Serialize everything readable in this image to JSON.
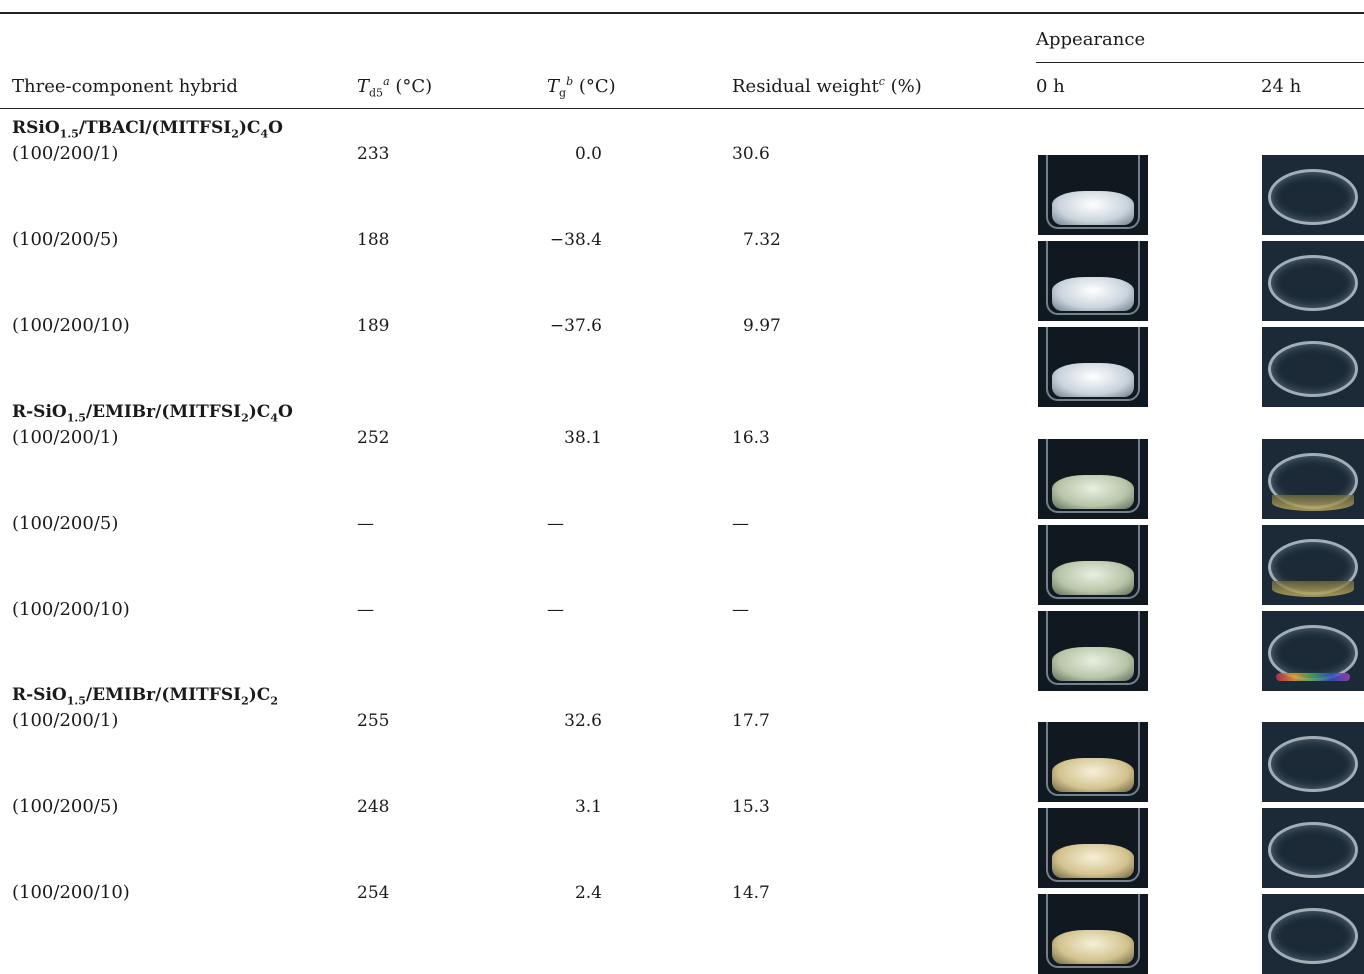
{
  "headers": {
    "hybrid": "Three-component hybrid",
    "td5_sym": "T",
    "td5_sub": "d5",
    "td5_sup": "a",
    "td5_unit": " (°C)",
    "tg_sym": "T",
    "tg_sub": "g",
    "tg_sup": "b",
    "tg_unit": " (°C)",
    "residual": "Residual weight",
    "residual_sup": "c",
    "residual_unit": " (%)",
    "appearance": "Appearance",
    "t0": "0 h",
    "t24": "24 h"
  },
  "groups": [
    {
      "name": "RSiO1.5/TBACl/(MITFSI2)C4O",
      "name_parts": {
        "a": "RSiO",
        "b": "1.5",
        "c": "/TBACl/(MITFSI",
        "d": "2",
        "e": ")C",
        "f": "4",
        "g": "O"
      },
      "rows": [
        {
          "ratio": "(100/200/1)",
          "td5": "233",
          "tg": "0.0",
          "residual": "30.6",
          "fill0": "white",
          "vial24": "dish"
        },
        {
          "ratio": "(100/200/5)",
          "td5": "188",
          "tg": "−38.4",
          "residual": "7.32",
          "fill0": "white",
          "vial24": "dish"
        },
        {
          "ratio": "(100/200/10)",
          "td5": "189",
          "tg": "−37.6",
          "residual": "9.97",
          "fill0": "white",
          "vial24": "dish"
        }
      ]
    },
    {
      "name": "R-SiO1.5/EMIBr/(MITFSI2)C4O",
      "name_parts": {
        "a": "R-SiO",
        "b": "1.5",
        "c": "/EMIBr/(MITFSI",
        "d": "2",
        "e": ")C",
        "f": "4",
        "g": "O"
      },
      "rows": [
        {
          "ratio": "(100/200/1)",
          "td5": "252",
          "tg": "38.1",
          "residual": "16.3",
          "fill0": "pale",
          "vial24": "liquid"
        },
        {
          "ratio": "(100/200/5)",
          "td5": "—",
          "tg": "—",
          "residual": "—",
          "fill0": "pale",
          "vial24": "liquid"
        },
        {
          "ratio": "(100/200/10)",
          "td5": "—",
          "tg": "—",
          "residual": "—",
          "fill0": "pale",
          "vial24": "rainbow"
        }
      ]
    },
    {
      "name": "R-SiO1.5/EMIBr/(MITFSI2)C2",
      "name_parts": {
        "a": "R-SiO",
        "b": "1.5",
        "c": "/EMIBr/(MITFSI",
        "d": "2",
        "e": ")C",
        "f": "2",
        "g": ""
      },
      "rows": [
        {
          "ratio": "(100/200/1)",
          "td5": "255",
          "tg": "32.6",
          "residual": "17.7",
          "fill0": "yellow",
          "vial24": "dish"
        },
        {
          "ratio": "(100/200/5)",
          "td5": "248",
          "tg": "3.1",
          "residual": "15.3",
          "fill0": "yellow",
          "vial24": "dish"
        },
        {
          "ratio": "(100/200/10)",
          "td5": "254",
          "tg": "2.4",
          "residual": "14.7",
          "fill0": "yellow",
          "vial24": "dish"
        }
      ]
    }
  ]
}
